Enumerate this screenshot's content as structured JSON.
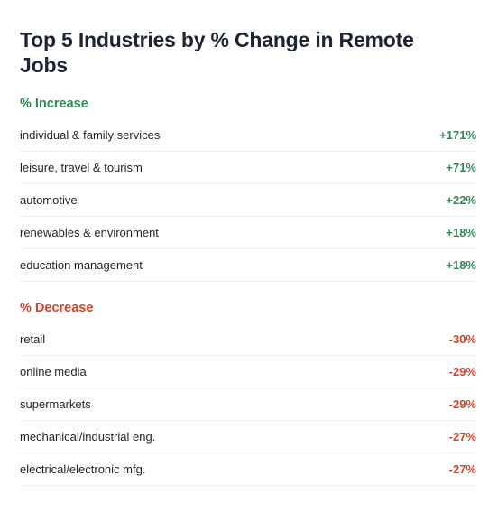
{
  "title": "Top 5 Industries by % Change in Remote Jobs",
  "colors": {
    "increase": "#2e8b57",
    "decrease": "#d0452f",
    "title": "#1d2433",
    "divider": "#eceef1"
  },
  "chart_data": {
    "type": "table",
    "title": "Top 5 Industries by % Change in Remote Jobs",
    "groups": [
      {
        "heading": "% Increase",
        "rows": [
          {
            "label": "individual & family services",
            "display": "+171%",
            "value": 171
          },
          {
            "label": "leisure, travel & tourism",
            "display": "+71%",
            "value": 71
          },
          {
            "label": "automotive",
            "display": "+22%",
            "value": 22
          },
          {
            "label": "renewables & environment",
            "display": "+18%",
            "value": 18
          },
          {
            "label": "education management",
            "display": "+18%",
            "value": 18
          }
        ]
      },
      {
        "heading": "% Decrease",
        "rows": [
          {
            "label": "retail",
            "display": "-30%",
            "value": -30
          },
          {
            "label": "online media",
            "display": "-29%",
            "value": -29
          },
          {
            "label": "supermarkets",
            "display": "-29%",
            "value": -29
          },
          {
            "label": "mechanical/industrial eng.",
            "display": "-27%",
            "value": -27
          },
          {
            "label": "electrical/electronic mfg.",
            "display": "-27%",
            "value": -27
          }
        ]
      }
    ]
  }
}
